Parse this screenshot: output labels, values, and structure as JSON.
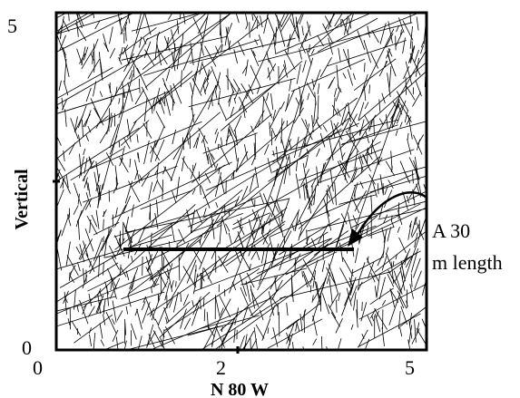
{
  "figure": {
    "x_axis": {
      "label": "N 80 W",
      "tick_labels": [
        "0",
        "2",
        "5"
      ]
    },
    "y_axis": {
      "label": "Vertical",
      "tick_labels": [
        "0",
        "5"
      ]
    },
    "annotation": {
      "line1": "A 30",
      "line2": "m length"
    },
    "colors": {
      "ink": "#000000",
      "background": "#ffffff"
    }
  }
}
